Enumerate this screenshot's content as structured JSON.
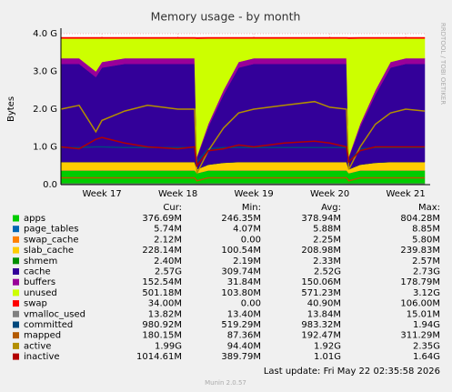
{
  "chart_data": {
    "type": "area",
    "title": "Memory usage - by month",
    "y_label": "Bytes",
    "side_note": "RRDTOOL / TOBI OETIKER",
    "xlim": [
      16.46,
      21.25
    ],
    "xticks": [
      {
        "value": 17,
        "label": "Week 17"
      },
      {
        "value": 18,
        "label": "Week 18"
      },
      {
        "value": 19,
        "label": "Week 19"
      },
      {
        "value": 20,
        "label": "Week 20"
      },
      {
        "value": 21,
        "label": "Week 21"
      }
    ],
    "ylim": [
      0,
      4
    ],
    "yticks": [
      {
        "value": 0,
        "label": "0.0"
      },
      {
        "value": 1,
        "label": "1.0 G"
      },
      {
        "value": 2,
        "label": "2.0 G"
      },
      {
        "value": 3,
        "label": "3.0 G"
      },
      {
        "value": 4,
        "label": "4.0 G"
      }
    ],
    "grid": true,
    "x": [
      16.46,
      16.7,
      16.92,
      17.0,
      17.3,
      17.6,
      18.0,
      18.22,
      18.25,
      18.4,
      18.6,
      18.8,
      19.0,
      19.4,
      19.8,
      20.0,
      20.22,
      20.25,
      20.4,
      20.6,
      20.8,
      21.0,
      21.25
    ],
    "series": [
      {
        "name": "apps",
        "color": "#00cc00",
        "type": "area",
        "values": [
          0.37,
          0.37,
          0.37,
          0.37,
          0.37,
          0.37,
          0.37,
          0.37,
          0.3,
          0.37,
          0.37,
          0.37,
          0.37,
          0.37,
          0.37,
          0.37,
          0.37,
          0.3,
          0.37,
          0.37,
          0.37,
          0.37,
          0.37
        ]
      },
      {
        "name": "page_tables",
        "color": "#0066b3",
        "type": "area",
        "values": [
          0.006,
          0.006,
          0.006,
          0.006,
          0.006,
          0.006,
          0.006,
          0.006,
          0.004,
          0.006,
          0.006,
          0.006,
          0.006,
          0.006,
          0.006,
          0.006,
          0.006,
          0.004,
          0.006,
          0.006,
          0.006,
          0.006,
          0.006
        ]
      },
      {
        "name": "swap_cache",
        "color": "#ff8000",
        "type": "area",
        "values": [
          0.002,
          0.002,
          0.002,
          0.002,
          0.002,
          0.002,
          0.002,
          0.002,
          0,
          0.002,
          0.002,
          0.002,
          0.002,
          0.002,
          0.002,
          0.002,
          0.002,
          0,
          0.002,
          0.002,
          0.002,
          0.002,
          0.002
        ]
      },
      {
        "name": "slab_cache",
        "color": "#ffcc00",
        "type": "area",
        "values": [
          0.22,
          0.22,
          0.22,
          0.22,
          0.22,
          0.22,
          0.22,
          0.22,
          0.1,
          0.15,
          0.2,
          0.22,
          0.22,
          0.22,
          0.22,
          0.22,
          0.22,
          0.1,
          0.15,
          0.2,
          0.22,
          0.22,
          0.22
        ]
      },
      {
        "name": "shmem",
        "color": "#008f00",
        "type": "area",
        "values": [
          0.0023,
          0.0023,
          0.0023,
          0.0023,
          0.0023,
          0.0023,
          0.0023,
          0.0023,
          0.0021,
          0.0023,
          0.0023,
          0.0023,
          0.0023,
          0.0023,
          0.0023,
          0.0023,
          0.0023,
          0.0021,
          0.0023,
          0.0023,
          0.0023,
          0.0023,
          0.0023
        ]
      },
      {
        "name": "cache",
        "color": "#330099",
        "type": "area",
        "values": [
          2.6,
          2.6,
          2.25,
          2.5,
          2.6,
          2.6,
          2.6,
          2.6,
          0.31,
          1.0,
          1.8,
          2.5,
          2.6,
          2.6,
          2.6,
          2.6,
          2.6,
          0.31,
          1.0,
          1.8,
          2.5,
          2.6,
          2.6
        ]
      },
      {
        "name": "buffers",
        "color": "#990099",
        "type": "area",
        "values": [
          0.15,
          0.15,
          0.15,
          0.15,
          0.15,
          0.15,
          0.15,
          0.15,
          0.03,
          0.08,
          0.12,
          0.15,
          0.15,
          0.15,
          0.15,
          0.15,
          0.15,
          0.03,
          0.08,
          0.12,
          0.15,
          0.15,
          0.15
        ]
      },
      {
        "name": "unused",
        "color": "#ccff00",
        "type": "area",
        "values": [
          0.52,
          0.52,
          0.87,
          0.62,
          0.52,
          0.52,
          0.52,
          0.52,
          3.12,
          2.26,
          1.37,
          0.62,
          0.52,
          0.52,
          0.52,
          0.52,
          0.52,
          3.12,
          2.26,
          1.37,
          0.62,
          0.52,
          0.52
        ]
      },
      {
        "name": "swap",
        "color": "#ff0000",
        "type": "area",
        "values": [
          0.034,
          0.034,
          0.034,
          0.034,
          0.034,
          0.034,
          0.034,
          0.034,
          0.034,
          0.034,
          0.034,
          0.034,
          0.034,
          0.034,
          0.034,
          0.034,
          0.034,
          0.034,
          0.034,
          0.034,
          0.034,
          0.034,
          0.034
        ]
      },
      {
        "name": "vmalloc_used",
        "color": "#808080",
        "type": "line",
        "values": [
          0.014,
          0.014,
          0.014,
          0.014,
          0.014,
          0.014,
          0.014,
          0.014,
          0.013,
          0.014,
          0.014,
          0.014,
          0.014,
          0.014,
          0.014,
          0.014,
          0.014,
          0.013,
          0.014,
          0.014,
          0.014,
          0.014,
          0.014
        ]
      },
      {
        "name": "committed",
        "color": "#00487d",
        "type": "line",
        "values": [
          0.98,
          0.98,
          1.0,
          1.0,
          0.98,
          0.98,
          0.98,
          0.98,
          0.6,
          0.95,
          0.98,
          0.98,
          0.98,
          0.98,
          0.98,
          0.98,
          0.98,
          0.6,
          0.95,
          0.98,
          0.98,
          0.98,
          0.98
        ]
      },
      {
        "name": "mapped",
        "color": "#b35a00",
        "type": "line",
        "values": [
          0.18,
          0.18,
          0.18,
          0.18,
          0.18,
          0.18,
          0.18,
          0.18,
          0.1,
          0.18,
          0.18,
          0.18,
          0.18,
          0.18,
          0.18,
          0.18,
          0.18,
          0.1,
          0.18,
          0.18,
          0.18,
          0.18,
          0.18
        ]
      },
      {
        "name": "active",
        "color": "#b38f00",
        "type": "line",
        "values": [
          2.0,
          2.1,
          1.4,
          1.7,
          1.95,
          2.1,
          2.0,
          2.0,
          0.3,
          0.9,
          1.5,
          1.9,
          2.0,
          2.1,
          2.2,
          2.05,
          2.0,
          0.4,
          1.0,
          1.6,
          1.9,
          2.0,
          1.95
        ]
      },
      {
        "name": "inactive",
        "color": "#b30000",
        "type": "line",
        "values": [
          1.0,
          0.95,
          1.2,
          1.25,
          1.1,
          1.0,
          0.95,
          1.0,
          0.5,
          0.9,
          0.95,
          1.05,
          1.0,
          1.1,
          1.15,
          1.1,
          1.0,
          0.6,
          0.9,
          1.0,
          1.0,
          1.0,
          1.0
        ]
      }
    ],
    "legend_table": {
      "headers": [
        "Cur:",
        "Min:",
        "Avg:",
        "Max:"
      ],
      "rows": [
        [
          "376.69M",
          "246.35M",
          "378.94M",
          "804.28M"
        ],
        [
          "5.74M",
          "4.07M",
          "5.88M",
          "8.85M"
        ],
        [
          "2.12M",
          "0.00",
          "2.25M",
          "5.80M"
        ],
        [
          "228.14M",
          "100.54M",
          "208.98M",
          "239.83M"
        ],
        [
          "2.40M",
          "2.19M",
          "2.33M",
          "2.57M"
        ],
        [
          "2.57G",
          "309.74M",
          "2.52G",
          "2.73G"
        ],
        [
          "152.54M",
          "31.84M",
          "150.06M",
          "178.79M"
        ],
        [
          "501.18M",
          "103.80M",
          "571.23M",
          "3.12G"
        ],
        [
          "34.00M",
          "0.00",
          "40.90M",
          "106.00M"
        ],
        [
          "13.82M",
          "13.40M",
          "13.84M",
          "15.01M"
        ],
        [
          "980.92M",
          "519.29M",
          "983.32M",
          "1.94G"
        ],
        [
          "180.15M",
          "87.36M",
          "192.47M",
          "311.29M"
        ],
        [
          "1.99G",
          "94.40M",
          "1.92G",
          "2.35G"
        ],
        [
          "1014.61M",
          "389.79M",
          "1.01G",
          "1.64G"
        ]
      ]
    },
    "last_update": "Last update: Fri May 22 02:35:58 2026",
    "footer": "Munin 2.0.57"
  }
}
